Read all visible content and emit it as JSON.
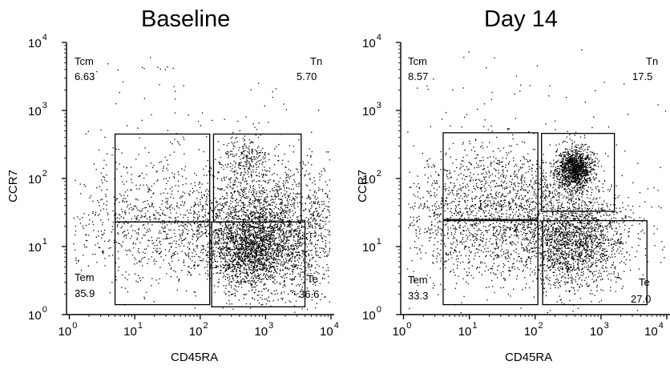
{
  "chart_data": [
    {
      "type": "scatter",
      "title": "Baseline",
      "xlabel": "CD45RA",
      "ylabel": "CCR7",
      "xscale": "log",
      "yscale": "log",
      "xlim": [
        1,
        10000
      ],
      "ylim": [
        1,
        10000
      ],
      "x_ticks": [
        {
          "base": "10",
          "exp": "0"
        },
        {
          "base": "10",
          "exp": "1"
        },
        {
          "base": "10",
          "exp": "2"
        },
        {
          "base": "10",
          "exp": "3"
        },
        {
          "base": "10",
          "exp": "4"
        }
      ],
      "y_ticks": [
        {
          "base": "10",
          "exp": "0"
        },
        {
          "base": "10",
          "exp": "1"
        },
        {
          "base": "10",
          "exp": "2"
        },
        {
          "base": "10",
          "exp": "3"
        },
        {
          "base": "10",
          "exp": "4"
        }
      ],
      "gates": [
        {
          "name": "Tcm",
          "value": "6.63",
          "x": [
            5,
            140
          ],
          "y": [
            23,
            450
          ]
        },
        {
          "name": "Tn",
          "value": "5.70",
          "x": [
            160,
            3500
          ],
          "y": [
            23,
            450
          ]
        },
        {
          "name": "Tem",
          "value": "35.9",
          "x": [
            5,
            140
          ],
          "y": [
            1.4,
            23
          ]
        },
        {
          "name": "Te",
          "value": "36.6",
          "x": [
            150,
            4000
          ],
          "y": [
            1.3,
            23
          ]
        }
      ],
      "populations": [
        {
          "cx": 2.3,
          "cy": 1.3,
          "sx": 1.3,
          "sy": 0.4,
          "weight": 0.6
        },
        {
          "cx": 3.2,
          "cy": 1.2,
          "sx": 0.55,
          "sy": 0.5,
          "weight": 0.85
        },
        {
          "cx": 2.75,
          "cy": 1.0,
          "sx": 0.32,
          "sy": 0.32,
          "weight": 0.75
        },
        {
          "cx": 2.7,
          "cy": 2.25,
          "sx": 0.18,
          "sy": 0.2,
          "weight": 0.12
        },
        {
          "cx": 1.4,
          "cy": 1.5,
          "sx": 0.8,
          "sy": 0.55,
          "weight": 0.22
        },
        {
          "cx": 1.5,
          "cy": 3.0,
          "sx": 1.2,
          "sy": 0.8,
          "weight": 0.04
        }
      ]
    },
    {
      "type": "scatter",
      "title": "Day 14",
      "xlabel": "CD45RA",
      "ylabel": "CCR7",
      "xscale": "log",
      "yscale": "log",
      "xlim": [
        1,
        10000
      ],
      "ylim": [
        1,
        10000
      ],
      "x_ticks": [
        {
          "base": "10",
          "exp": "0"
        },
        {
          "base": "10",
          "exp": "1"
        },
        {
          "base": "10",
          "exp": "2"
        },
        {
          "base": "10",
          "exp": "3"
        },
        {
          "base": "10",
          "exp": "4"
        }
      ],
      "y_ticks": [
        {
          "base": "10",
          "exp": "0"
        },
        {
          "base": "10",
          "exp": "1"
        },
        {
          "base": "10",
          "exp": "2"
        },
        {
          "base": "10",
          "exp": "3"
        },
        {
          "base": "10",
          "exp": "4"
        }
      ],
      "gates": [
        {
          "name": "Tcm",
          "value": "8.57",
          "x": [
            4,
            110
          ],
          "y": [
            25,
            470
          ]
        },
        {
          "name": "Tn",
          "value": "17.5",
          "x": [
            125,
            1600
          ],
          "y": [
            33,
            460
          ]
        },
        {
          "name": "Tem",
          "value": "33.3",
          "x": [
            4,
            110
          ],
          "y": [
            1.4,
            24
          ]
        },
        {
          "name": "Te",
          "value": "27.0",
          "x": [
            130,
            5000
          ],
          "y": [
            1.4,
            24
          ]
        }
      ],
      "populations": [
        {
          "cx": 1.6,
          "cy": 1.3,
          "sx": 0.95,
          "sy": 0.45,
          "weight": 0.7
        },
        {
          "cx": 2.6,
          "cy": 1.05,
          "sx": 0.35,
          "sy": 0.35,
          "weight": 0.55
        },
        {
          "cx": 2.6,
          "cy": 2.15,
          "sx": 0.14,
          "sy": 0.15,
          "weight": 0.45
        },
        {
          "cx": 1.5,
          "cy": 1.9,
          "sx": 0.7,
          "sy": 0.35,
          "weight": 0.2
        },
        {
          "cx": 1.5,
          "cy": 3.0,
          "sx": 1.2,
          "sy": 0.8,
          "weight": 0.04
        }
      ]
    }
  ]
}
